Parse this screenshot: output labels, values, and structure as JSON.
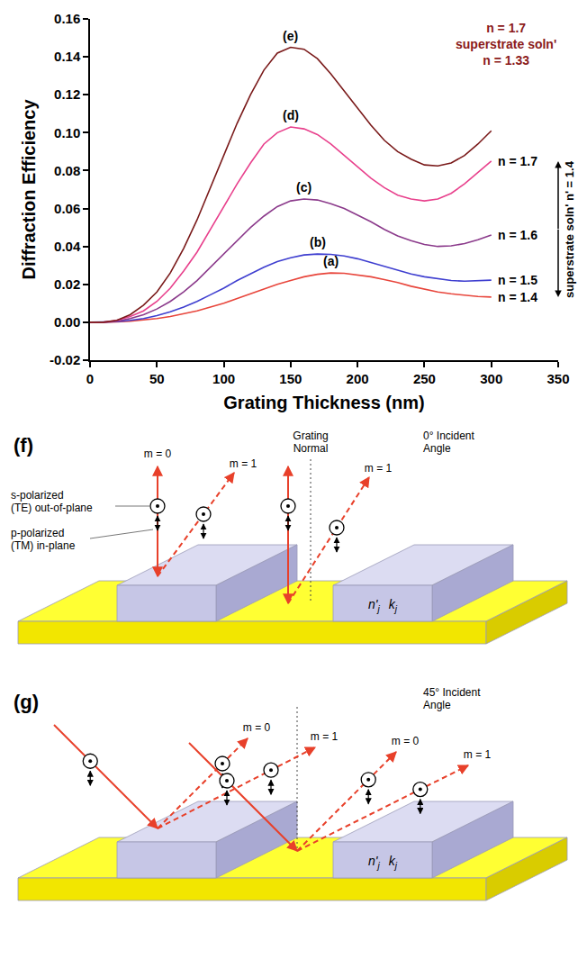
{
  "chart_data": {
    "type": "line",
    "x_label": "Grating Thickness (nm)",
    "y_label": "Diffraction Efficiency",
    "x": [
      0,
      10,
      20,
      30,
      40,
      50,
      60,
      70,
      80,
      90,
      100,
      110,
      120,
      130,
      140,
      150,
      160,
      170,
      180,
      190,
      200,
      210,
      220,
      230,
      240,
      250,
      260,
      270,
      280,
      290,
      300
    ],
    "series": [
      {
        "name": "(a)",
        "label": "n = 1.4",
        "color": "#e8463c",
        "values": [
          0,
          0,
          0.0002,
          0.0006,
          0.0012,
          0.002,
          0.003,
          0.0045,
          0.006,
          0.008,
          0.01,
          0.0125,
          0.015,
          0.0175,
          0.02,
          0.022,
          0.024,
          0.0253,
          0.026,
          0.0258,
          0.025,
          0.024,
          0.0225,
          0.021,
          0.019,
          0.0175,
          0.016,
          0.015,
          0.0142,
          0.0136,
          0.0133
        ]
      },
      {
        "name": "(b)",
        "label": "n = 1.5",
        "color": "#3f3fd0",
        "values": [
          0,
          0,
          0.0003,
          0.001,
          0.002,
          0.0035,
          0.0055,
          0.008,
          0.011,
          0.0145,
          0.018,
          0.022,
          0.0255,
          0.029,
          0.032,
          0.034,
          0.0355,
          0.036,
          0.0358,
          0.035,
          0.0335,
          0.0315,
          0.0295,
          0.0275,
          0.0255,
          0.024,
          0.023,
          0.022,
          0.0217,
          0.0218,
          0.0222
        ]
      },
      {
        "name": "(c)",
        "label": "n = 1.6",
        "color": "#8b3a8b",
        "values": [
          0,
          0,
          0.0005,
          0.002,
          0.004,
          0.007,
          0.011,
          0.016,
          0.022,
          0.029,
          0.036,
          0.043,
          0.05,
          0.056,
          0.061,
          0.064,
          0.065,
          0.0645,
          0.0625,
          0.06,
          0.0565,
          0.053,
          0.049,
          0.0455,
          0.043,
          0.041,
          0.04,
          0.0403,
          0.0415,
          0.0435,
          0.046
        ]
      },
      {
        "name": "(d)",
        "label": "n = 1.7",
        "color": "#e8408c",
        "values": [
          0,
          0,
          0.001,
          0.003,
          0.006,
          0.011,
          0.018,
          0.027,
          0.037,
          0.049,
          0.061,
          0.073,
          0.084,
          0.094,
          0.1,
          0.103,
          0.102,
          0.099,
          0.094,
          0.088,
          0.082,
          0.076,
          0.071,
          0.067,
          0.065,
          0.064,
          0.065,
          0.068,
          0.073,
          0.079,
          0.085
        ]
      },
      {
        "name": "(e)",
        "color": "#7a1a1a",
        "values": [
          0,
          0,
          0.001,
          0.004,
          0.009,
          0.016,
          0.026,
          0.039,
          0.054,
          0.071,
          0.088,
          0.105,
          0.12,
          0.133,
          0.142,
          0.145,
          0.144,
          0.139,
          0.131,
          0.122,
          0.113,
          0.104,
          0.096,
          0.09,
          0.086,
          0.083,
          0.0825,
          0.084,
          0.088,
          0.094,
          0.101
        ]
      }
    ],
    "note": {
      "lines": [
        "n = 1.7",
        "superstrate soln'",
        "n = 1.33"
      ],
      "color": "#8b1a1a"
    },
    "bracket_label": "superstrate soln' n' = 1.4",
    "xlim": [
      0,
      350
    ],
    "xticks": [
      0,
      50,
      100,
      150,
      200,
      250,
      300,
      350
    ],
    "ylim": [
      -0.02,
      0.16
    ],
    "yticks": [
      -0.02,
      {
        "value": 0,
        "label": "0.00"
      },
      0.02,
      0.04,
      0.06,
      0.08,
      {
        "value": 0.1,
        "label": "0.10"
      },
      0.12,
      0.14,
      0.16
    ],
    "grid": false
  },
  "diagrams": [
    {
      "label": "(f)",
      "incident_angle": 0,
      "normal_label": [
        "Grating",
        "Normal"
      ],
      "angle_label": [
        "0° Incident",
        "Angle"
      ],
      "order_labels": [
        "m = 0",
        "m = 1",
        "m = 1"
      ],
      "s_label": [
        "s-polarized",
        "(TE) out-of-plane"
      ],
      "p_label": [
        "p-polarized",
        "(TM) in-plane"
      ],
      "material": {
        "n": "n'",
        "k": "k",
        "subscript": "j"
      }
    },
    {
      "label": "(g)",
      "incident_angle": 45,
      "angle_label": [
        "45° Incident",
        "Angle"
      ],
      "order_labels": [
        "m = 0",
        "m = 1",
        "m = 0",
        "m = 1"
      ],
      "material": {
        "n": "n'",
        "k": "k",
        "subscript": "j"
      }
    }
  ]
}
